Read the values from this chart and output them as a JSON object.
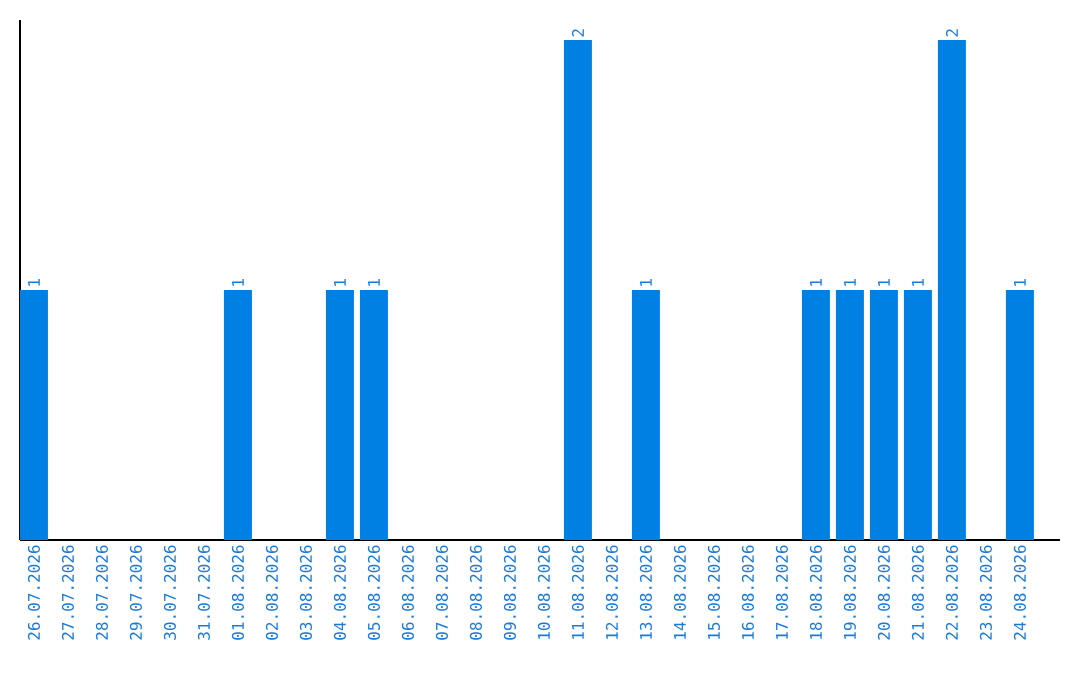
{
  "chart_data": {
    "type": "bar",
    "color": "#0080e3",
    "categories": [
      "26.07.2026",
      "27.07.2026",
      "28.07.2026",
      "29.07.2026",
      "30.07.2026",
      "31.07.2026",
      "01.08.2026",
      "02.08.2026",
      "03.08.2026",
      "04.08.2026",
      "05.08.2026",
      "06.08.2026",
      "07.08.2026",
      "08.08.2026",
      "09.08.2026",
      "10.08.2026",
      "11.08.2026",
      "12.08.2026",
      "13.08.2026",
      "14.08.2026",
      "15.08.2026",
      "16.08.2026",
      "17.08.2026",
      "18.08.2026",
      "19.08.2026",
      "20.08.2026",
      "21.08.2026",
      "22.08.2026",
      "23.08.2026",
      "24.08.2026"
    ],
    "values": [
      1,
      0,
      0,
      0,
      0,
      0,
      1,
      0,
      0,
      1,
      1,
      0,
      0,
      0,
      0,
      0,
      2,
      0,
      1,
      0,
      0,
      0,
      0,
      1,
      1,
      1,
      1,
      2,
      0,
      1
    ],
    "value_labels": [
      "1",
      null,
      null,
      null,
      null,
      null,
      "1",
      null,
      null,
      "1",
      "1",
      null,
      null,
      null,
      null,
      null,
      "2",
      null,
      "1",
      null,
      null,
      null,
      null,
      "1",
      "1",
      "1",
      "1",
      "2",
      null,
      "1"
    ],
    "ylim": [
      0,
      2.08
    ],
    "tick_labels": "x",
    "grid": false
  }
}
